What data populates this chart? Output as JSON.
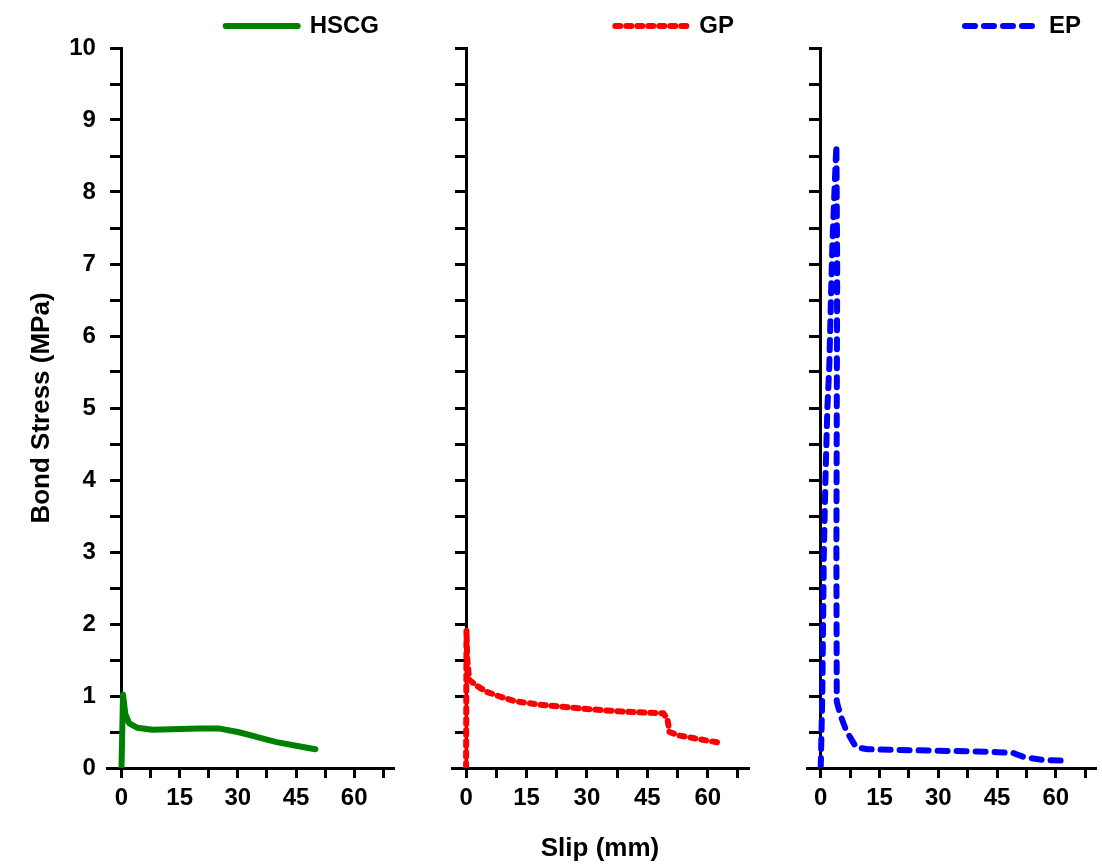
{
  "chart_data": [
    {
      "type": "line",
      "ylabel": "Bond Stress (MPa)",
      "legend": "top right",
      "line_style": "solid",
      "xlim": [
        -3.5,
        70
      ],
      "ylim": [
        0,
        10
      ],
      "xticks": [
        0,
        {
          "value": 7.5,
          "label": null
        },
        15,
        {
          "value": 22.5,
          "label": null
        },
        30,
        {
          "value": 37.5,
          "label": null
        },
        45,
        {
          "value": 52.5,
          "label": null
        },
        60,
        {
          "value": 67.5,
          "label": null
        }
      ],
      "yticks": [
        0,
        {
          "value": 0.5,
          "label": null
        },
        1,
        {
          "value": 1.5,
          "label": null
        },
        2,
        {
          "value": 2.5,
          "label": null
        },
        3,
        {
          "value": 3.5,
          "label": null
        },
        4,
        {
          "value": 4.5,
          "label": null
        },
        5,
        {
          "value": 5.5,
          "label": null
        },
        6,
        {
          "value": 6.5,
          "label": null
        },
        7,
        {
          "value": 7.5,
          "label": null
        },
        8,
        {
          "value": 8.5,
          "label": null
        },
        9,
        {
          "value": 9.5,
          "label": null
        },
        10
      ],
      "series": [
        {
          "name": "HSCG",
          "color": "#008000",
          "x": [
            0,
            0.2,
            0.4,
            1,
            2,
            4,
            8,
            15,
            20,
            25,
            30,
            35,
            40,
            45,
            50
          ],
          "values": [
            0,
            0.5,
            1.02,
            0.75,
            0.62,
            0.56,
            0.53,
            0.54,
            0.55,
            0.55,
            0.5,
            0.43,
            0.36,
            0.31,
            0.26
          ]
        }
      ]
    },
    {
      "type": "line",
      "xlabel": "Slip (mm)",
      "legend": "top right",
      "line_style": "dotted",
      "tick_labels": "x",
      "xlim": [
        -3.5,
        70
      ],
      "ylim": [
        0,
        10
      ],
      "xticks": [
        0,
        {
          "value": 7.5,
          "label": null
        },
        15,
        {
          "value": 22.5,
          "label": null
        },
        30,
        {
          "value": 37.5,
          "label": null
        },
        45,
        {
          "value": 52.5,
          "label": null
        },
        60,
        {
          "value": 67.5,
          "label": null
        }
      ],
      "yticks": [
        0,
        {
          "value": 0.5,
          "label": null
        },
        1,
        {
          "value": 1.5,
          "label": null
        },
        2,
        {
          "value": 2.5,
          "label": null
        },
        3,
        {
          "value": 3.5,
          "label": null
        },
        4,
        {
          "value": 4.5,
          "label": null
        },
        5,
        {
          "value": 5.5,
          "label": null
        },
        6,
        {
          "value": 6.5,
          "label": null
        },
        7,
        {
          "value": 7.5,
          "label": null
        },
        8,
        {
          "value": 8.5,
          "label": null
        },
        9,
        {
          "value": 9.5,
          "label": null
        },
        10
      ],
      "series": [
        {
          "name": "GP",
          "color": "#ff0000",
          "x": [
            0,
            0.1,
            0.3,
            0.8,
            3,
            5,
            8,
            12,
            18,
            24,
            30,
            37,
            44,
            49,
            50,
            50.5,
            53,
            57,
            63
          ],
          "values": [
            0,
            1.91,
            1.5,
            1.22,
            1.13,
            1.06,
            1.0,
            0.93,
            0.88,
            0.85,
            0.82,
            0.79,
            0.77,
            0.76,
            0.68,
            0.5,
            0.45,
            0.41,
            0.35
          ]
        }
      ]
    },
    {
      "type": "line",
      "legend": "top right",
      "line_style": "dashed",
      "tick_labels": "x",
      "xlim": [
        -3.5,
        70
      ],
      "ylim": [
        0,
        10
      ],
      "xticks": [
        0,
        {
          "value": 7.5,
          "label": null
        },
        15,
        {
          "value": 22.5,
          "label": null
        },
        30,
        {
          "value": 37.5,
          "label": null
        },
        45,
        {
          "value": 52.5,
          "label": null
        },
        60,
        {
          "value": 67.5,
          "label": null
        }
      ],
      "yticks": [
        0,
        {
          "value": 0.5,
          "label": null
        },
        1,
        {
          "value": 1.5,
          "label": null
        },
        2,
        {
          "value": 2.5,
          "label": null
        },
        3,
        {
          "value": 3.5,
          "label": null
        },
        4,
        {
          "value": 4.5,
          "label": null
        },
        5,
        {
          "value": 5.5,
          "label": null
        },
        6,
        {
          "value": 6.5,
          "label": null
        },
        7,
        {
          "value": 7.5,
          "label": null
        },
        8,
        {
          "value": 8.5,
          "label": null
        },
        9,
        {
          "value": 9.5,
          "label": null
        },
        10
      ],
      "series": [
        {
          "name": "EP",
          "color": "#0000ff",
          "x": [
            0,
            0.4,
            0.6,
            0.8,
            1.2,
            1.7,
            2.2,
            2.6,
            3,
            3.5,
            4,
            4.2,
            4.1,
            4,
            4.1,
            5,
            6.5,
            9,
            12,
            20,
            30,
            40,
            45,
            49,
            52,
            57,
            63
          ],
          "values": [
            0,
            1,
            2,
            3,
            4,
            5,
            5.6,
            6.5,
            7.3,
            8,
            8.65,
            7,
            5,
            3,
            0.92,
            0.74,
            0.52,
            0.29,
            0.26,
            0.25,
            0.24,
            0.23,
            0.22,
            0.21,
            0.15,
            0.11,
            0.1
          ]
        }
      ]
    }
  ]
}
